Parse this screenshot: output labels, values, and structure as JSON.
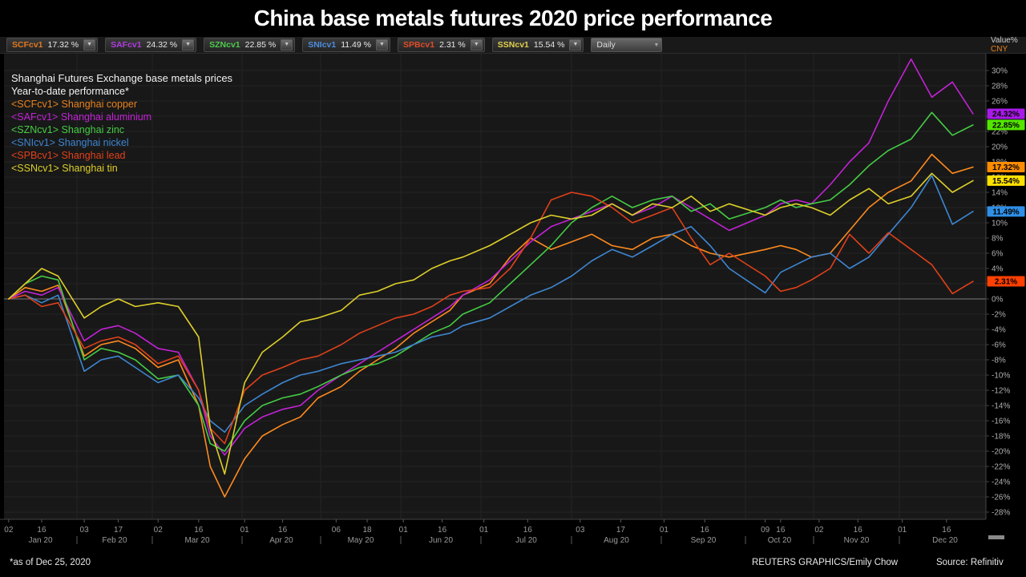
{
  "title": "China base metals futures 2020 price performance",
  "toolbar": {
    "instruments": [
      {
        "ticker": "SCFcv1",
        "value": "17.32 %",
        "color": "#e07820"
      },
      {
        "ticker": "SAFcv1",
        "value": "24.32 %",
        "color": "#b13ce0"
      },
      {
        "ticker": "SZNcv1",
        "value": "22.85 %",
        "color": "#4ccc4c"
      },
      {
        "ticker": "SNIcv1",
        "value": "11.49 %",
        "color": "#4c8ce0"
      },
      {
        "ticker": "SPBcv1",
        "value": "2.31 %",
        "color": "#e04c28"
      },
      {
        "ticker": "SSNcv1",
        "value": "15.54 %",
        "color": "#e0d04c"
      }
    ],
    "period": "Daily"
  },
  "axis_unit": {
    "line1": "Value%",
    "line2": "CNY"
  },
  "legend": {
    "heading": "Shanghai Futures Exchange base metals prices",
    "subheading": "Year-to-date performance*",
    "items": [
      {
        "code": "<SCFcv1>",
        "name": "Shanghai copper",
        "color": "#e8821e"
      },
      {
        "code": "<SAFcv1>",
        "name": "Shanghai aluminium",
        "color": "#c322d6"
      },
      {
        "code": "<SZNcv1>",
        "name": "Shanghai zinc",
        "color": "#44cc44"
      },
      {
        "code": "<SNIcv1>",
        "name": "Shanghai nickel",
        "color": "#3e86d2"
      },
      {
        "code": "<SPBcv1>",
        "name": "Shanghai lead",
        "color": "#e0401a"
      },
      {
        "code": "<SSNcv1>",
        "name": "Shanghai tin",
        "color": "#ddcf2a"
      }
    ]
  },
  "chart_data": {
    "type": "line",
    "title": "Shanghai Futures Exchange base metals prices",
    "subtitle": "Year-to-date performance*",
    "xlabel": "",
    "ylabel": "Value% CNY",
    "ylim": [
      -28,
      30
    ],
    "y_tick_step": 2,
    "grid": true,
    "legend_position": "top-left",
    "dates": [
      "Jan 02",
      "Jan 09",
      "Jan 16",
      "Jan 23",
      "Feb 03",
      "Feb 10",
      "Feb 17",
      "Feb 24",
      "Mar 02",
      "Mar 09",
      "Mar 16",
      "Mar 20",
      "Mar 25",
      "Apr 01",
      "Apr 08",
      "Apr 16",
      "Apr 23",
      "Apr 30",
      "May 08",
      "May 15",
      "May 22",
      "May 29",
      "Jun 05",
      "Jun 12",
      "Jun 19",
      "Jun 24",
      "Jul 03",
      "Jul 10",
      "Jul 17",
      "Jul 24",
      "Jul 31",
      "Aug 07",
      "Aug 14",
      "Aug 21",
      "Aug 28",
      "Sep 04",
      "Sep 11",
      "Sep 18",
      "Sep 25",
      "Oct 09",
      "Oct 16",
      "Oct 23",
      "Oct 30",
      "Nov 06",
      "Nov 13",
      "Nov 20",
      "Nov 27",
      "Dec 04",
      "Dec 11",
      "Dec 18",
      "Dec 25"
    ],
    "series": [
      {
        "name": "Shanghai copper",
        "ticker": "SCFcv1",
        "color": "#ff8a1e",
        "badge_color": "#ff8c00",
        "end_label": "17.32%",
        "values": [
          0,
          1.5,
          1,
          1.8,
          -7.5,
          -6,
          -5.5,
          -6.5,
          -9,
          -8,
          -14,
          -22,
          -26,
          -21,
          -18,
          -16.5,
          -15.5,
          -13,
          -11.5,
          -9.5,
          -8,
          -6.5,
          -4.5,
          -3,
          -1.5,
          0.5,
          2,
          5.5,
          8,
          6.5,
          7.5,
          8.5,
          7,
          6.5,
          8,
          8.5,
          7,
          6,
          5.5,
          6.5,
          7,
          6.5,
          5.5,
          6,
          9,
          12,
          14,
          15.5,
          19,
          16.5,
          17.32
        ]
      },
      {
        "name": "Shanghai aluminium",
        "ticker": "SAFcv1",
        "color": "#c322d6",
        "badge_color": "#a81ae8",
        "end_label": "24.32%",
        "values": [
          0,
          1,
          0.5,
          1.5,
          -5.5,
          -4,
          -3.5,
          -4.5,
          -6.5,
          -7,
          -12,
          -18,
          -20.5,
          -17,
          -15.5,
          -14.5,
          -14,
          -12,
          -10,
          -8.5,
          -7,
          -5.5,
          -4,
          -2.5,
          -1,
          0.5,
          2.5,
          5,
          7.5,
          9.5,
          10.5,
          11.5,
          12.5,
          11,
          12,
          13.5,
          12,
          10.5,
          9,
          11,
          12.5,
          13,
          12.5,
          15,
          18,
          20.5,
          26,
          31.5,
          26.5,
          28.5,
          24.32
        ]
      },
      {
        "name": "Shanghai zinc",
        "ticker": "SZNcv1",
        "color": "#44cc44",
        "badge_color": "#55e600",
        "end_label": "22.85%",
        "values": [
          0,
          2,
          3,
          2.5,
          -8,
          -6.5,
          -7,
          -8,
          -10.5,
          -10,
          -14,
          -19,
          -20,
          -16,
          -14,
          -13,
          -12.5,
          -11.5,
          -10,
          -9,
          -8.5,
          -7.5,
          -6,
          -4.5,
          -3.5,
          -2,
          -0.5,
          2,
          4.5,
          7,
          10,
          12,
          13.5,
          12,
          13,
          13.5,
          11.5,
          12.5,
          10.5,
          12,
          13,
          12,
          12.5,
          13,
          15,
          17.5,
          19.5,
          21,
          24.5,
          21.5,
          22.85
        ]
      },
      {
        "name": "Shanghai nickel",
        "ticker": "SNIcv1",
        "color": "#3e86d2",
        "badge_color": "#2f8fe6",
        "end_label": "11.49%",
        "values": [
          0,
          0.5,
          -0.5,
          0.5,
          -9.5,
          -8,
          -7.5,
          -9,
          -11,
          -10,
          -13,
          -16,
          -17.5,
          -14,
          -12.5,
          -11,
          -10,
          -9.5,
          -8.5,
          -8,
          -7.5,
          -7,
          -6,
          -5,
          -4.5,
          -3.5,
          -2.5,
          -1,
          0.5,
          1.5,
          3,
          5,
          6.5,
          5.5,
          7,
          8.5,
          9.5,
          7,
          4,
          0.8,
          3.5,
          4.5,
          5.5,
          6,
          4,
          5.5,
          8.5,
          12,
          16.2,
          9.8,
          11.49
        ]
      },
      {
        "name": "Shanghai lead",
        "ticker": "SPBcv1",
        "color": "#e0401a",
        "badge_color": "#ff4000",
        "end_label": "2.31%",
        "values": [
          0,
          0.5,
          -1,
          -0.5,
          -6.5,
          -5.5,
          -5,
          -6,
          -8.5,
          -7.5,
          -12,
          -17,
          -19,
          -12,
          -10,
          -9,
          -8,
          -7.5,
          -6,
          -4.5,
          -3.5,
          -2.5,
          -2,
          -1,
          0.5,
          1,
          1.5,
          4,
          8,
          13,
          14,
          13.5,
          12,
          10,
          11,
          12,
          8,
          4.5,
          6,
          3,
          1,
          1.5,
          2.5,
          4,
          8.5,
          6,
          8.7,
          6.5,
          4.5,
          0.7,
          2.31
        ]
      },
      {
        "name": "Shanghai tin",
        "ticker": "SSNcv1",
        "color": "#ddcf2a",
        "badge_color": "#ffe100",
        "end_label": "15.54%",
        "values": [
          0,
          2,
          4,
          3,
          -2.5,
          -1,
          0,
          -1,
          -0.5,
          -1,
          -5,
          -17,
          -23,
          -11,
          -7,
          -5,
          -3,
          -2.5,
          -1.5,
          0.5,
          1,
          2,
          2.5,
          4,
          5,
          5.5,
          7,
          8.5,
          10,
          11,
          10.5,
          11,
          12.5,
          11,
          12.5,
          12,
          13.5,
          11.5,
          12.5,
          11,
          12,
          12.5,
          12,
          11,
          13,
          14.5,
          12.5,
          13.5,
          16.5,
          14,
          15.54
        ]
      }
    ]
  },
  "x_axis": {
    "day_ticks": [
      {
        "date": "Jan 02",
        "label": "02"
      },
      {
        "date": "Jan 16",
        "label": "16"
      },
      {
        "date": "Feb 03",
        "label": "03"
      },
      {
        "date": "Feb 17",
        "label": "17"
      },
      {
        "date": "Mar 02",
        "label": "02"
      },
      {
        "date": "Mar 16",
        "label": "16"
      },
      {
        "date": "Apr 01",
        "label": "01"
      },
      {
        "date": "Apr 16",
        "label": "16"
      },
      {
        "date": "May 06",
        "label": "06"
      },
      {
        "date": "May 18",
        "label": "18"
      },
      {
        "date": "Jun 01",
        "label": "01"
      },
      {
        "date": "Jun 16",
        "label": "16"
      },
      {
        "date": "Jul 01",
        "label": "01"
      },
      {
        "date": "Jul 16",
        "label": "16"
      },
      {
        "date": "Aug 03",
        "label": "03"
      },
      {
        "date": "Aug 17",
        "label": "17"
      },
      {
        "date": "Sep 01",
        "label": "01"
      },
      {
        "date": "Sep 16",
        "label": "16"
      },
      {
        "date": "Oct 09",
        "label": "09"
      },
      {
        "date": "Oct 16",
        "label": "16"
      },
      {
        "date": "Nov 02",
        "label": "02"
      },
      {
        "date": "Nov 16",
        "label": "16"
      },
      {
        "date": "Dec 01",
        "label": "01"
      },
      {
        "date": "Dec 16",
        "label": "16"
      }
    ],
    "months": [
      {
        "label": "Jan 20",
        "month": "Jan"
      },
      {
        "label": "Feb 20",
        "month": "Feb"
      },
      {
        "label": "Mar 20",
        "month": "Mar"
      },
      {
        "label": "Apr 20",
        "month": "Apr"
      },
      {
        "label": "May 20",
        "month": "May"
      },
      {
        "label": "Jun 20",
        "month": "Jun"
      },
      {
        "label": "Jul 20",
        "month": "Jul"
      },
      {
        "label": "Aug 20",
        "month": "Aug"
      },
      {
        "label": "Sep 20",
        "month": "Sep"
      },
      {
        "label": "Oct 20",
        "month": "Oct"
      },
      {
        "label": "Nov 20",
        "month": "Nov"
      },
      {
        "label": "Dec 20",
        "month": "Dec"
      }
    ]
  },
  "footer": {
    "note": "*as of Dec 25, 2020",
    "credit": "REUTERS GRAPHICS/Emily Chow",
    "source": "Source: Refinitiv"
  },
  "colors": {
    "background": "#000000",
    "plot_background": "#181818",
    "grid": "#232323",
    "zero_line": "#7a7a7a",
    "axis": "#444444",
    "tick_text": "#9a9a9a"
  }
}
